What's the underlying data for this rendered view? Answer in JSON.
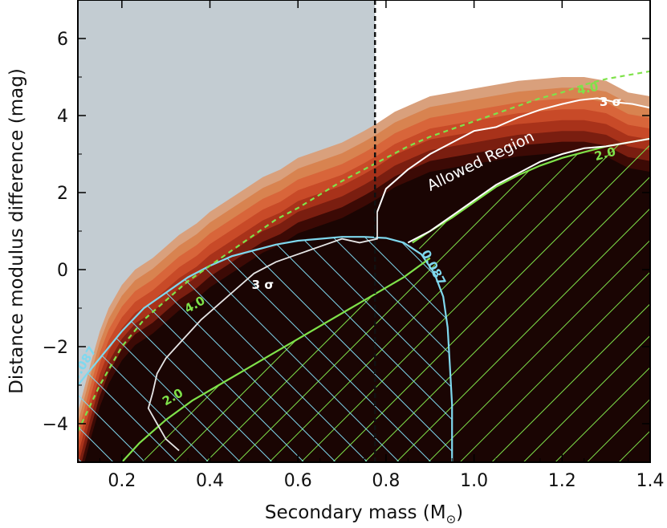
{
  "chart_data": {
    "type": "contour",
    "xlabel": "Secondary mass (M",
    "xlabel_sub": "⊙",
    "xlabel_close": ")",
    "ylabel": "Distance modulus difference (mag)",
    "xlim": [
      0.1,
      1.4
    ],
    "ylim": [
      -5,
      7
    ],
    "xticks": [
      0.2,
      0.4,
      0.6,
      0.8,
      1.0,
      1.2,
      1.4
    ],
    "xtick_labels": [
      "0.2",
      "0.4",
      "0.6",
      "0.8",
      "1.0",
      "1.2",
      "1.4"
    ],
    "yticks": [
      -4,
      -2,
      0,
      2,
      4,
      6
    ],
    "ytick_labels": [
      "−4",
      "−2",
      "0",
      "2",
      "4",
      "6"
    ],
    "vertical_line_x": 0.775,
    "excluded_region": {
      "x_max": 0.775,
      "color": "#c3ccd2"
    },
    "density_upper_edge": [
      [
        0.1,
        -3.7
      ],
      [
        0.13,
        -2.4
      ],
      [
        0.15,
        -1.6
      ],
      [
        0.17,
        -1.0
      ],
      [
        0.2,
        -0.4
      ],
      [
        0.23,
        0.0
      ],
      [
        0.27,
        0.3
      ],
      [
        0.3,
        0.6
      ],
      [
        0.33,
        0.9
      ],
      [
        0.37,
        1.2
      ],
      [
        0.4,
        1.5
      ],
      [
        0.44,
        1.8
      ],
      [
        0.48,
        2.1
      ],
      [
        0.52,
        2.4
      ],
      [
        0.56,
        2.6
      ],
      [
        0.6,
        2.9
      ],
      [
        0.65,
        3.1
      ],
      [
        0.7,
        3.3
      ],
      [
        0.75,
        3.6
      ],
      [
        0.78,
        3.8
      ],
      [
        0.82,
        4.1
      ],
      [
        0.86,
        4.3
      ],
      [
        0.9,
        4.5
      ],
      [
        0.95,
        4.6
      ],
      [
        1.0,
        4.7
      ],
      [
        1.05,
        4.8
      ],
      [
        1.1,
        4.9
      ],
      [
        1.15,
        4.95
      ],
      [
        1.2,
        5.0
      ],
      [
        1.25,
        5.0
      ],
      [
        1.3,
        4.9
      ],
      [
        1.35,
        4.6
      ],
      [
        1.4,
        4.5
      ]
    ],
    "contour_3sigma_label": "3 σ",
    "contour_3sigma_upper": [
      [
        0.78,
        1.5
      ],
      [
        0.8,
        2.1
      ],
      [
        0.85,
        2.6
      ],
      [
        0.9,
        3.0
      ],
      [
        0.95,
        3.3
      ],
      [
        1.0,
        3.6
      ],
      [
        1.05,
        3.7
      ],
      [
        1.1,
        3.95
      ],
      [
        1.15,
        4.15
      ],
      [
        1.2,
        4.3
      ],
      [
        1.24,
        4.4
      ],
      [
        1.28,
        4.45
      ],
      [
        1.32,
        4.35
      ],
      [
        1.36,
        4.3
      ],
      [
        1.4,
        4.2
      ]
    ],
    "contour_3sigma_lower": [
      [
        0.85,
        0.7
      ],
      [
        0.9,
        1.0
      ],
      [
        0.95,
        1.4
      ],
      [
        1.0,
        1.8
      ],
      [
        1.05,
        2.2
      ],
      [
        1.1,
        2.5
      ],
      [
        1.15,
        2.8
      ],
      [
        1.2,
        3.0
      ],
      [
        1.25,
        3.15
      ],
      [
        1.3,
        3.2
      ],
      [
        1.35,
        3.3
      ],
      [
        1.4,
        3.4
      ]
    ],
    "contour_3sigma_left": [
      [
        0.78,
        1.5
      ],
      [
        0.78,
        0.8
      ],
      [
        0.74,
        0.7
      ],
      [
        0.7,
        0.8
      ],
      [
        0.65,
        0.6
      ],
      [
        0.6,
        0.4
      ],
      [
        0.55,
        0.2
      ],
      [
        0.5,
        -0.1
      ],
      [
        0.46,
        -0.5
      ],
      [
        0.42,
        -0.9
      ],
      [
        0.38,
        -1.3
      ],
      [
        0.34,
        -1.8
      ],
      [
        0.3,
        -2.3
      ],
      [
        0.28,
        -2.7
      ],
      [
        0.27,
        -3.2
      ],
      [
        0.26,
        -3.6
      ],
      [
        0.28,
        -4.0
      ],
      [
        0.3,
        -4.4
      ],
      [
        0.33,
        -4.7
      ]
    ],
    "allowed_region_label": "Allowed Region",
    "contour_0087_label": "0.087",
    "contour_0087": [
      [
        0.1,
        -3.0
      ],
      [
        0.15,
        -2.3
      ],
      [
        0.2,
        -1.6
      ],
      [
        0.25,
        -1.0
      ],
      [
        0.3,
        -0.6
      ],
      [
        0.35,
        -0.2
      ],
      [
        0.4,
        0.1
      ],
      [
        0.45,
        0.35
      ],
      [
        0.5,
        0.5
      ],
      [
        0.55,
        0.65
      ],
      [
        0.6,
        0.75
      ],
      [
        0.65,
        0.8
      ],
      [
        0.7,
        0.85
      ],
      [
        0.75,
        0.85
      ],
      [
        0.8,
        0.82
      ],
      [
        0.84,
        0.7
      ],
      [
        0.88,
        0.4
      ],
      [
        0.91,
        -0.1
      ],
      [
        0.93,
        -0.7
      ],
      [
        0.94,
        -1.5
      ],
      [
        0.945,
        -2.5
      ],
      [
        0.95,
        -3.5
      ],
      [
        0.95,
        -5.0
      ]
    ],
    "contour_4_label": "4.0",
    "contour_4": [
      [
        0.1,
        -4.2
      ],
      [
        0.15,
        -3.0
      ],
      [
        0.2,
        -2.0
      ],
      [
        0.25,
        -1.3
      ],
      [
        0.3,
        -0.8
      ],
      [
        0.35,
        -0.3
      ],
      [
        0.4,
        0.1
      ],
      [
        0.45,
        0.5
      ],
      [
        0.5,
        0.9
      ],
      [
        0.55,
        1.3
      ],
      [
        0.6,
        1.6
      ],
      [
        0.65,
        1.95
      ],
      [
        0.7,
        2.3
      ],
      [
        0.75,
        2.6
      ],
      [
        0.8,
        2.9
      ],
      [
        0.85,
        3.2
      ],
      [
        0.9,
        3.45
      ],
      [
        0.95,
        3.65
      ],
      [
        1.0,
        3.85
      ],
      [
        1.05,
        4.05
      ],
      [
        1.1,
        4.25
      ],
      [
        1.15,
        4.45
      ],
      [
        1.2,
        4.6
      ],
      [
        1.25,
        4.8
      ],
      [
        1.3,
        4.95
      ],
      [
        1.35,
        5.05
      ],
      [
        1.4,
        5.15
      ]
    ],
    "contour_2_label": "2.0",
    "contour_2_lower": [
      [
        0.2,
        -5.0
      ],
      [
        0.24,
        -4.5
      ],
      [
        0.3,
        -3.9
      ],
      [
        0.36,
        -3.4
      ],
      [
        0.42,
        -3.0
      ],
      [
        0.48,
        -2.6
      ],
      [
        0.54,
        -2.2
      ],
      [
        0.6,
        -1.8
      ],
      [
        0.66,
        -1.4
      ],
      [
        0.72,
        -1.0
      ],
      [
        0.78,
        -0.6
      ],
      [
        0.84,
        -0.2
      ],
      [
        0.9,
        0.3
      ]
    ],
    "contour_2_upper": [
      [
        0.86,
        0.7
      ],
      [
        0.9,
        1.0
      ],
      [
        0.95,
        1.35
      ],
      [
        1.0,
        1.75
      ],
      [
        1.05,
        2.15
      ],
      [
        1.1,
        2.45
      ],
      [
        1.15,
        2.7
      ],
      [
        1.2,
        2.9
      ],
      [
        1.25,
        3.05
      ],
      [
        1.3,
        3.2
      ],
      [
        1.35,
        3.3
      ],
      [
        1.4,
        3.4
      ]
    ],
    "colors": {
      "blue_contour": "#7fd8ee",
      "green_contour": "#7fe24a",
      "white_contour": "#ffffff",
      "density_dark": "#1a0503",
      "density_levels": [
        "#d9a07c",
        "#d88350",
        "#d8653a",
        "#c84a28",
        "#a8321a",
        "#7a1e10",
        "#3c0a05",
        "#1a0503"
      ]
    }
  }
}
